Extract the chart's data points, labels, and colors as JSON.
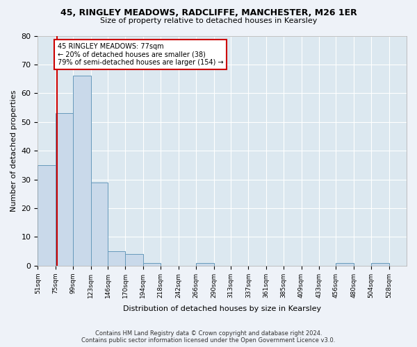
{
  "title1": "45, RINGLEY MEADOWS, RADCLIFFE, MANCHESTER, M26 1ER",
  "title2": "Size of property relative to detached houses in Kearsley",
  "xlabel": "Distribution of detached houses by size in Kearsley",
  "ylabel": "Number of detached properties",
  "bin_labels": [
    "51sqm",
    "75sqm",
    "99sqm",
    "123sqm",
    "146sqm",
    "170sqm",
    "194sqm",
    "218sqm",
    "242sqm",
    "266sqm",
    "290sqm",
    "313sqm",
    "337sqm",
    "361sqm",
    "385sqm",
    "409sqm",
    "433sqm",
    "456sqm",
    "480sqm",
    "504sqm",
    "528sqm"
  ],
  "bin_edges": [
    51,
    75,
    99,
    123,
    146,
    170,
    194,
    218,
    242,
    266,
    290,
    313,
    337,
    361,
    385,
    409,
    433,
    456,
    480,
    504,
    528
  ],
  "bar_values": [
    35,
    53,
    66,
    29,
    5,
    4,
    1,
    0,
    0,
    1,
    0,
    0,
    0,
    0,
    0,
    0,
    0,
    1,
    0,
    1,
    0
  ],
  "bar_color": "#c9d9ea",
  "bar_edge_color": "#6699bb",
  "property_line_x": 77,
  "property_line_color": "#cc0000",
  "annotation_text": "45 RINGLEY MEADOWS: 77sqm\n← 20% of detached houses are smaller (38)\n79% of semi-detached houses are larger (154) →",
  "annotation_box_color": "#ffffff",
  "annotation_box_edge": "#cc0000",
  "ylim": [
    0,
    80
  ],
  "yticks": [
    0,
    10,
    20,
    30,
    40,
    50,
    60,
    70,
    80
  ],
  "footer1": "Contains HM Land Registry data © Crown copyright and database right 2024.",
  "footer2": "Contains public sector information licensed under the Open Government Licence v3.0.",
  "bg_color": "#eef2f8",
  "plot_bg_color": "#dce8f0"
}
